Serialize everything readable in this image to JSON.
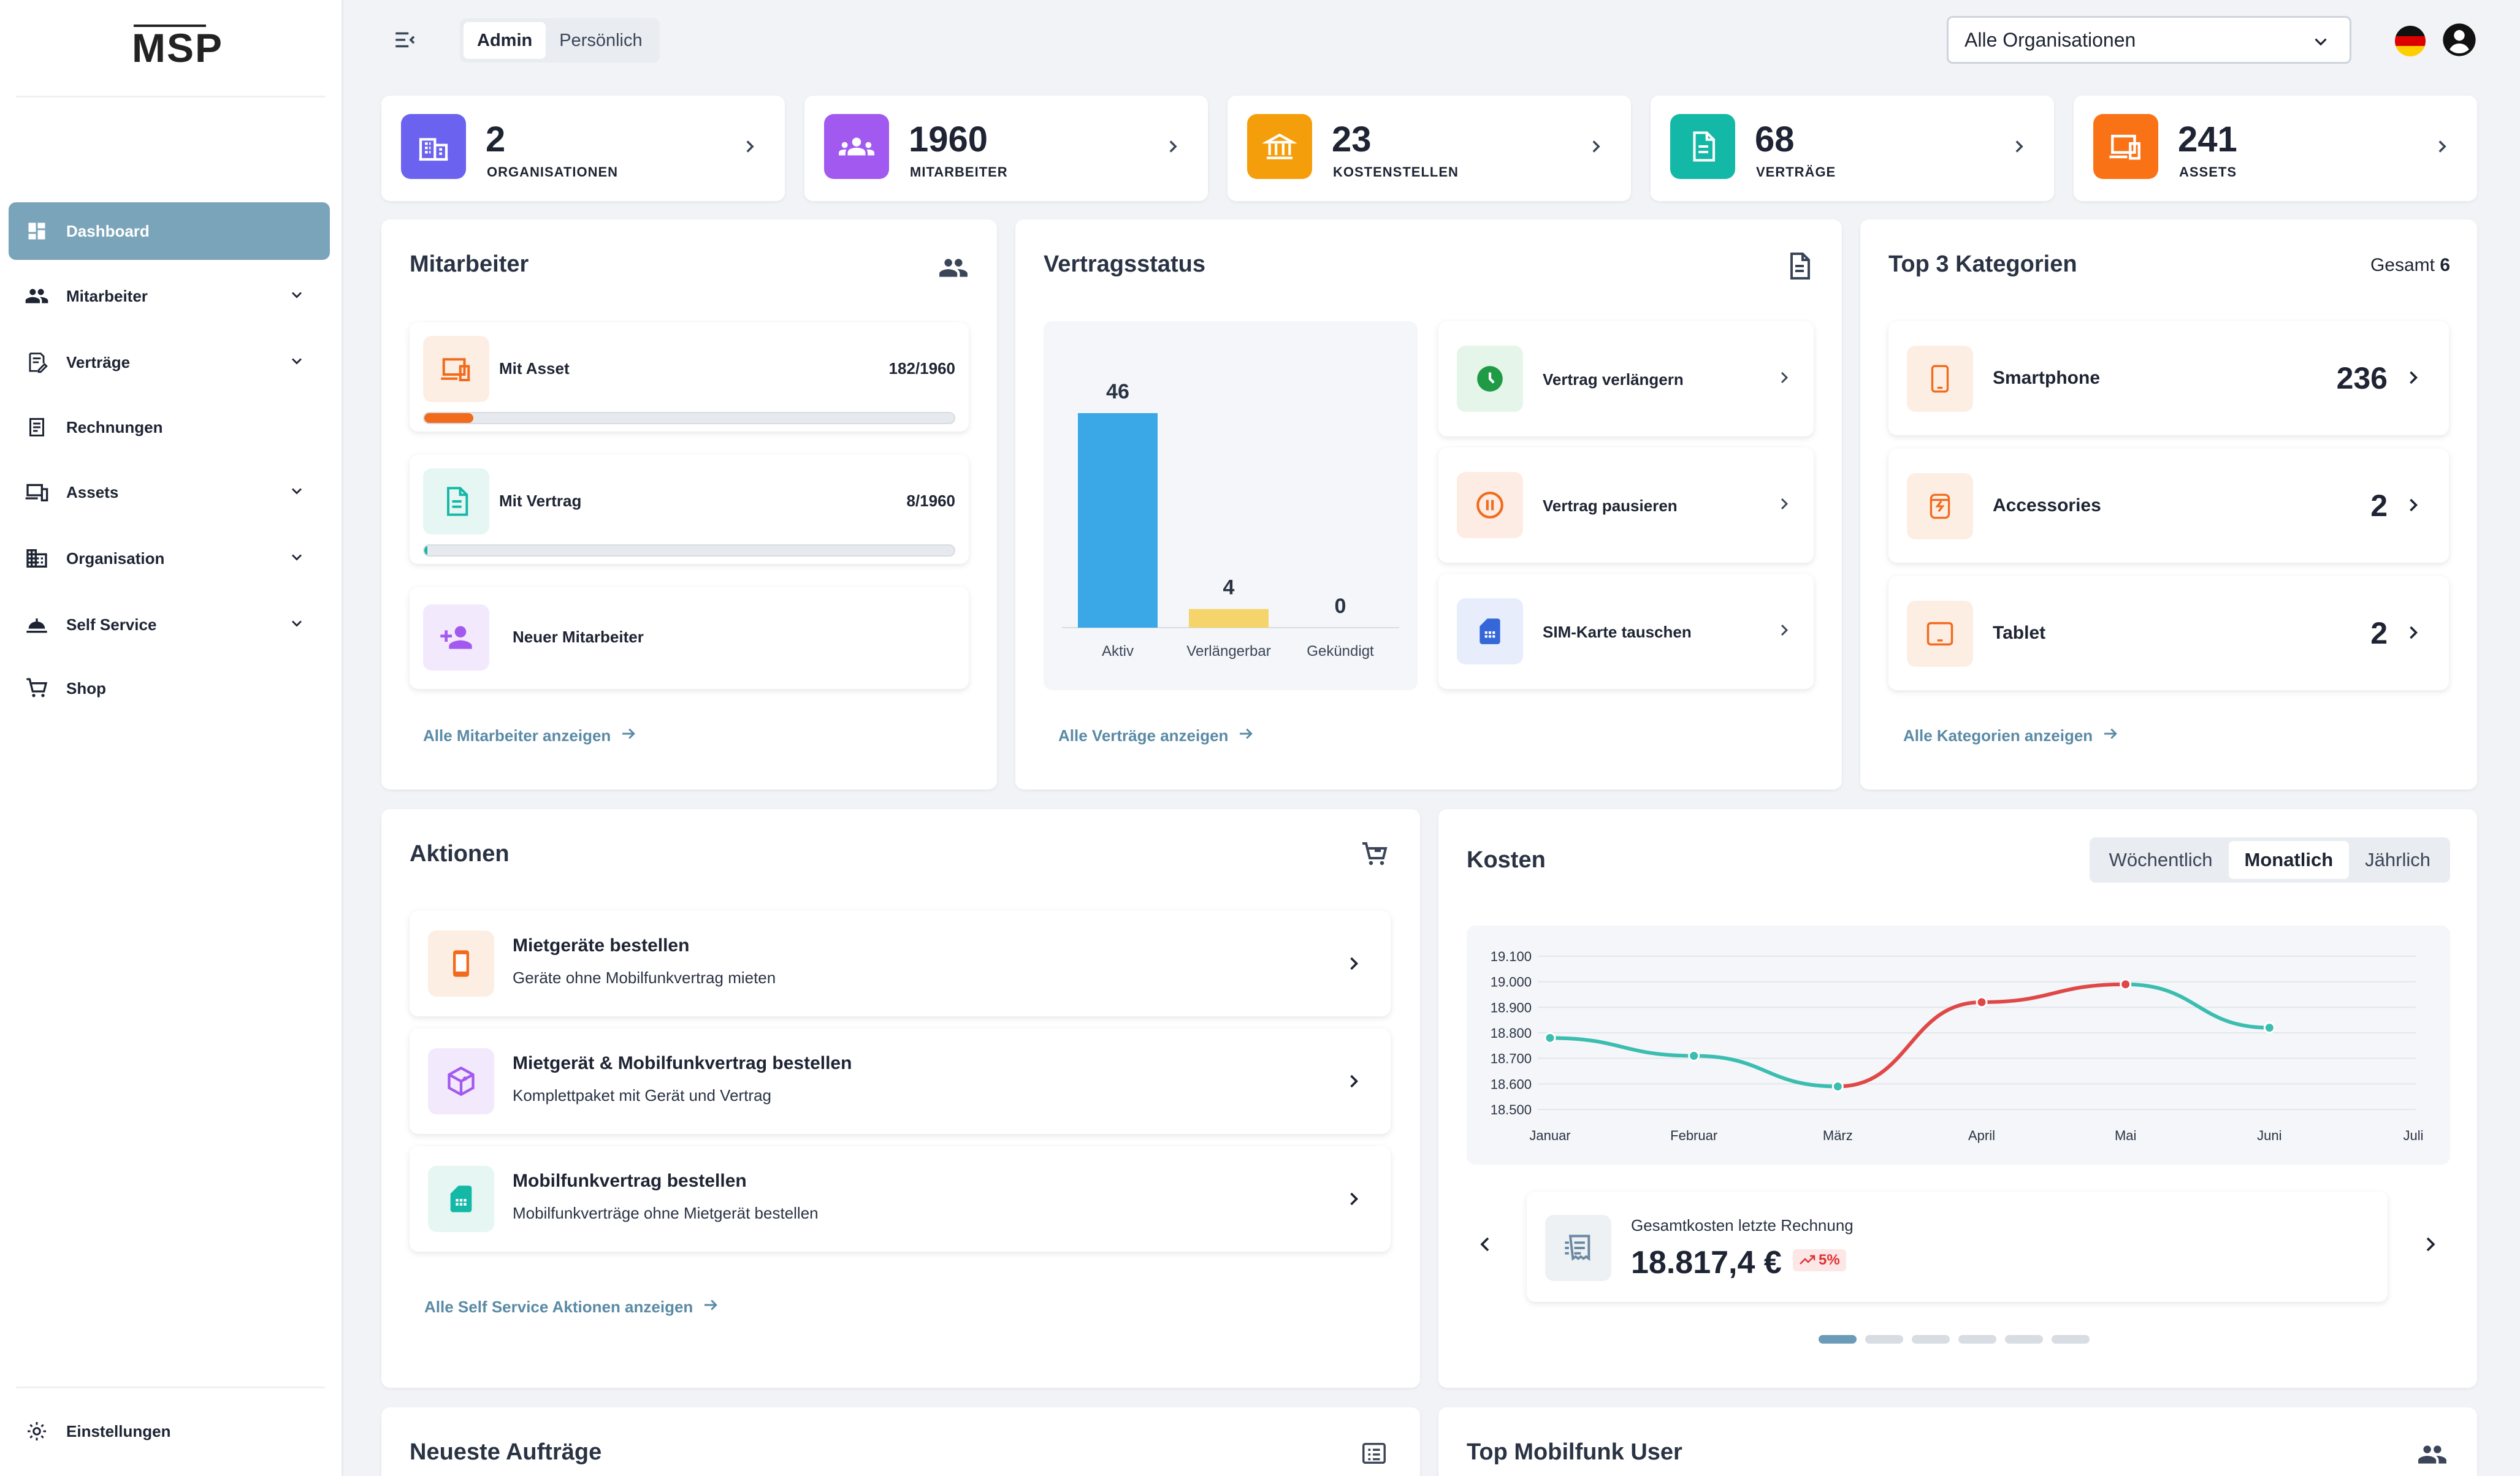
{
  "app": {
    "logo": "MSP"
  },
  "sidebar": {
    "items": [
      {
        "label": "Dashboard",
        "icon": "dashboard-icon",
        "active": true
      },
      {
        "label": "Mitarbeiter",
        "icon": "people-icon",
        "expandable": true
      },
      {
        "label": "Verträge",
        "icon": "contract-icon",
        "expandable": true
      },
      {
        "label": "Rechnungen",
        "icon": "invoice-icon"
      },
      {
        "label": "Assets",
        "icon": "devices-icon",
        "expandable": true
      },
      {
        "label": "Organisation",
        "icon": "building-icon",
        "expandable": true
      },
      {
        "label": "Self Service",
        "icon": "self-service-icon",
        "expandable": true
      },
      {
        "label": "Shop",
        "icon": "cart-icon"
      }
    ],
    "settings_label": "Einstellungen"
  },
  "topbar": {
    "mode_tabs": [
      "Admin",
      "Persönlich"
    ],
    "selected_mode": "Admin",
    "org_select": "Alle Organisationen",
    "language": "de"
  },
  "stats": [
    {
      "value": "2",
      "label": "ORGANISATIONEN",
      "color": "#6b63f0",
      "icon": "building-icon"
    },
    {
      "value": "1960",
      "label": "MITARBEITER",
      "color": "#a259f0",
      "icon": "people-icon"
    },
    {
      "value": "23",
      "label": "KOSTENSTELLEN",
      "color": "#f59e0b",
      "icon": "bank-icon"
    },
    {
      "value": "68",
      "label": "VERTRÄGE",
      "color": "#14b8a6",
      "icon": "document-icon"
    },
    {
      "value": "241",
      "label": "ASSETS",
      "color": "#f97316",
      "icon": "devices-icon"
    }
  ],
  "mitarbeiter": {
    "title": "Mitarbeiter",
    "items": [
      {
        "label": "Mit Asset",
        "value": "182/1960",
        "progress": 0.093,
        "color": "#f26a1b"
      },
      {
        "label": "Mit Vertrag",
        "value": "8/1960",
        "progress": 0.004,
        "color": "#14b8a6"
      },
      {
        "label": "Neuer Mitarbeiter"
      }
    ],
    "link": "Alle Mitarbeiter anzeigen"
  },
  "vertragsstatus": {
    "title": "Vertragsstatus",
    "actions": [
      "Vertrag verlängern",
      "Vertrag pausieren",
      "SIM-Karte tauschen"
    ],
    "link": "Alle Verträge anzeigen"
  },
  "top_kategorien": {
    "title": "Top 3 Kategorien",
    "total_label": "Gesamt",
    "total": "6",
    "items": [
      {
        "label": "Smartphone",
        "value": "236"
      },
      {
        "label": "Accessories",
        "value": "2"
      },
      {
        "label": "Tablet",
        "value": "2"
      }
    ],
    "link": "Alle Kategorien anzeigen"
  },
  "aktionen": {
    "title": "Aktionen",
    "items": [
      {
        "title": "Mietgeräte bestellen",
        "desc": "Geräte ohne Mobilfunkvertrag mieten"
      },
      {
        "title": "Mietgerät & Mobilfunkvertrag bestellen",
        "desc": "Komplettpaket mit Gerät und Vertrag"
      },
      {
        "title": "Mobilfunkvertrag bestellen",
        "desc": "Mobilfunkverträge ohne Mietgerät bestellen"
      }
    ],
    "link": "Alle Self Service Aktionen anzeigen"
  },
  "kosten": {
    "title": "Kosten",
    "periods": [
      "Wöchentlich",
      "Monatlich",
      "Jährlich"
    ],
    "selected_period": "Monatlich",
    "summary_label": "Gesamtkosten letzte Rechnung",
    "summary_value": "18.817,4 €",
    "trend": "5%",
    "carousel_pages": 6,
    "carousel_active": 0
  },
  "bottom": {
    "left_title": "Neueste Aufträge",
    "right_title": "Top Mobilfunk User"
  },
  "chart_data": [
    {
      "type": "bar",
      "categories": [
        "Aktiv",
        "Verlängerbar",
        "Gekündigt"
      ],
      "values": [
        46,
        4,
        0
      ],
      "colors": [
        "#3aa7e6",
        "#f5d56b",
        "#cccccc"
      ]
    },
    {
      "type": "line",
      "x": [
        "Januar",
        "Februar",
        "März",
        "April",
        "Mai",
        "Juni",
        "Juli"
      ],
      "y": [
        18780,
        18710,
        18590,
        18920,
        18990,
        18820,
        null
      ],
      "ylim": [
        18500,
        19100
      ],
      "yticks": [
        "19.100",
        "19.000",
        "18.900",
        "18.800",
        "18.700",
        "18.600",
        "18.500"
      ],
      "colors": {
        "down": "#3bbdb0",
        "up": "#e04848"
      }
    }
  ]
}
